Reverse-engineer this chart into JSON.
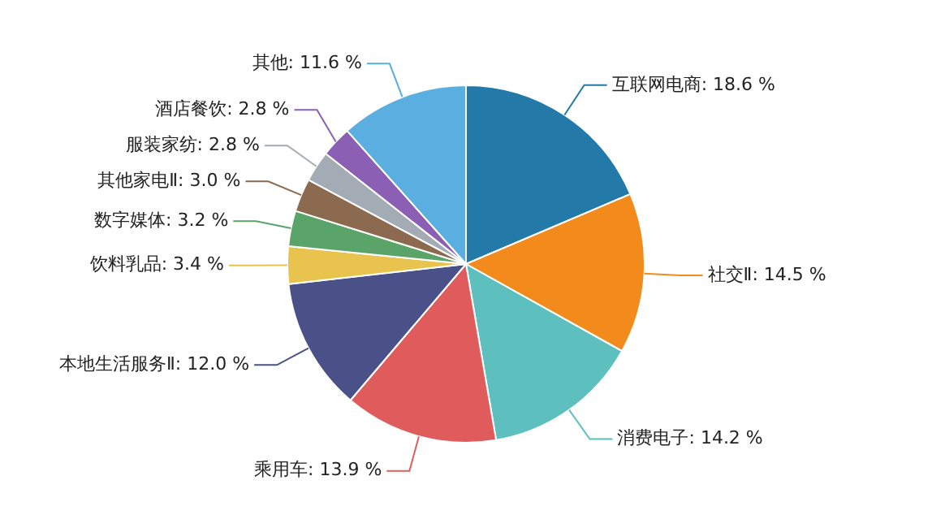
{
  "chart_data": {
    "type": "pie",
    "categories": [
      "互联网电商",
      "社交Ⅱ",
      "消费电子",
      "乘用车",
      "本地生活服务Ⅱ",
      "饮料乳品",
      "数字媒体",
      "其他家电Ⅱ",
      "服装家纺",
      "酒店餐饮",
      "其他"
    ],
    "values": [
      18.6,
      14.5,
      14.2,
      13.9,
      12.0,
      3.4,
      3.2,
      3.0,
      2.8,
      2.8,
      11.6
    ],
    "value_labels": [
      "18.6 %",
      "14.5 %",
      "14.2 %",
      "13.9 %",
      "12.0 %",
      "3.4 %",
      "3.2 %",
      "3.0 %",
      "2.8 %",
      "2.8 %",
      "11.6 %"
    ],
    "colors": [
      "#2379a8",
      "#f28a1c",
      "#5ebfbf",
      "#e05c5c",
      "#4a5088",
      "#e8c44e",
      "#5aa469",
      "#8c6a4f",
      "#a3abb5",
      "#8b5fb3",
      "#5aaee0"
    ],
    "legend": false
  }
}
